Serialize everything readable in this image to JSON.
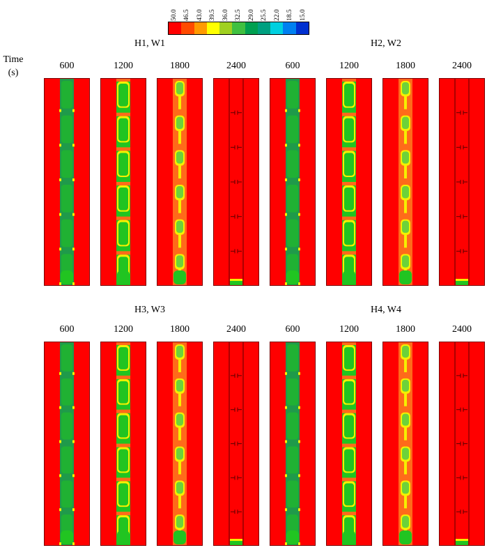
{
  "legend": {
    "labels": [
      "50.0",
      "46.5",
      "43.0",
      "39.5",
      "36.0",
      "32.5",
      "29.0",
      "25.5",
      "22.0",
      "18.5",
      "15.0"
    ],
    "colors": [
      "#ff0000",
      "#ff4a00",
      "#ff9a00",
      "#ffff00",
      "#a0d020",
      "#40c040",
      "#00a050",
      "#00a080",
      "#00d0e0",
      "#0080f0",
      "#0030d0"
    ]
  },
  "axis": {
    "title": "Time\n(s)"
  },
  "groups": [
    {
      "title": "H1, W1"
    },
    {
      "title": "H2, W2"
    },
    {
      "title": "H3, W3"
    },
    {
      "title": "H4, W4"
    }
  ],
  "time_labels": [
    "600",
    "1200",
    "1800",
    "2400"
  ],
  "colors": {
    "hot": "#ff0000",
    "warm": "#ff6a1a",
    "cool_green": "#21c421",
    "dark_green": "#1f9a4a",
    "yellow": "#f5f000",
    "bright_green": "#6cd23a"
  }
}
